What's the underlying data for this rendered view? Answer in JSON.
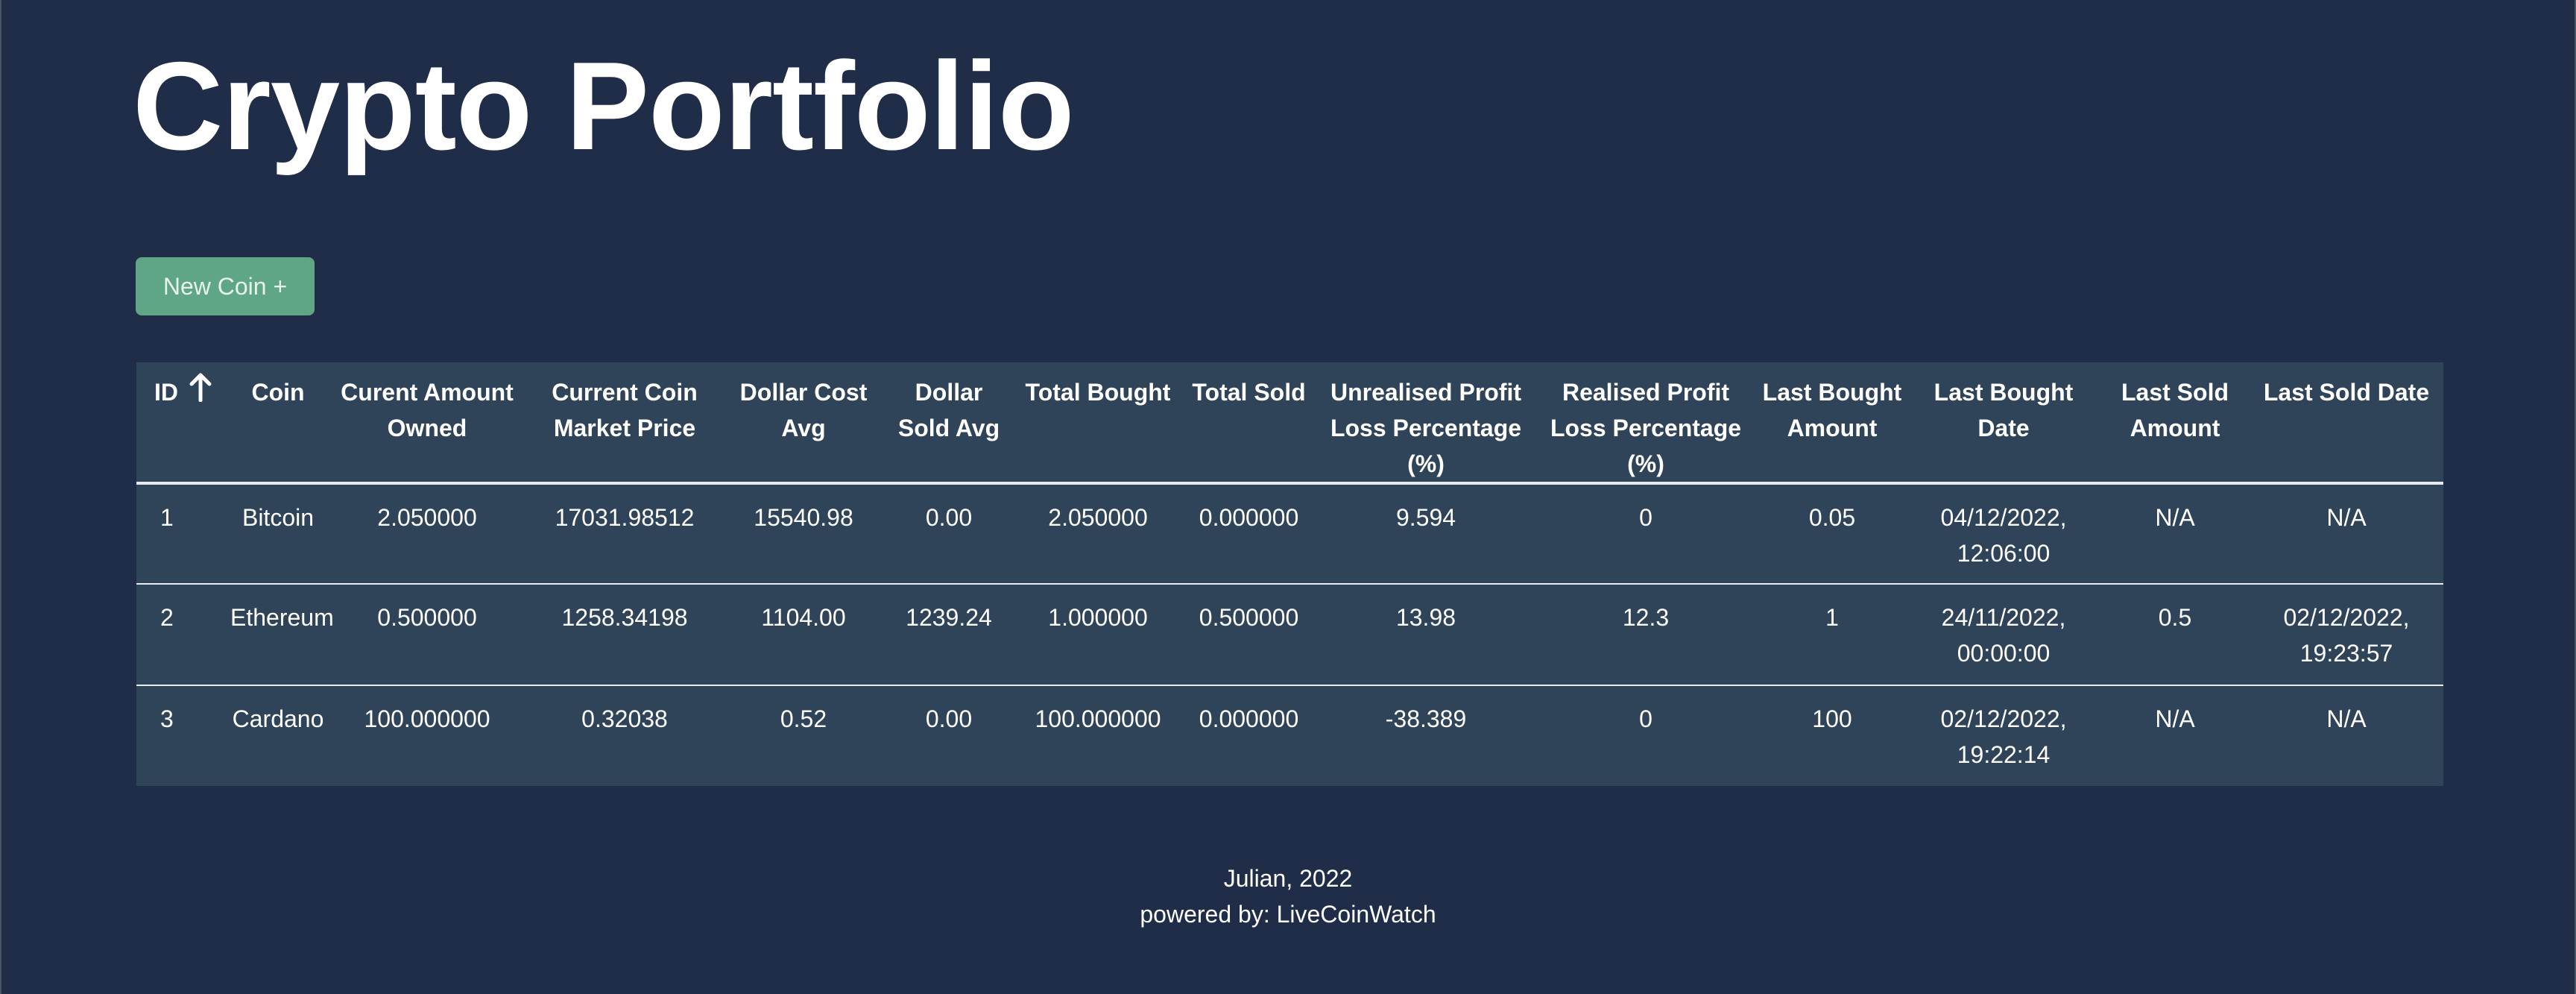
{
  "header": {
    "title": "Crypto Portfolio"
  },
  "toolbar": {
    "new_coin_label": "New Coin +"
  },
  "table": {
    "sort_icon": "arrow-up-icon",
    "columns": [
      "ID",
      "Coin",
      "Curent Amount Owned",
      "Current Coin Market Price",
      "Dollar Cost Avg",
      "Dollar Sold Avg",
      "Total Bought",
      "Total Sold",
      "Unrealised Profit Loss Percentage (%)",
      "Realised Profit Loss Percentage (%)",
      "Last Bought Amount",
      "Last Bought Date",
      "Last Sold Amount",
      "Last Sold Date"
    ],
    "rows": [
      [
        "1",
        "Bitcoin",
        "2.050000",
        "17031.98512",
        "15540.98",
        "0.00",
        "2.050000",
        "0.000000",
        "9.594",
        "0",
        "0.05",
        "04/12/2022, 12:06:00",
        "N/A",
        "N/A"
      ],
      [
        "2",
        "Ethereum",
        "0.500000",
        "1258.34198",
        "1104.00",
        "1239.24",
        "1.000000",
        "0.500000",
        "13.98",
        "12.3",
        "1",
        "24/11/2022, 00:00:00",
        "0.5",
        "02/12/2022, 19:23:57"
      ],
      [
        "3",
        "Cardano",
        "100.000000",
        "0.32038",
        "0.52",
        "0.00",
        "100.000000",
        "0.000000",
        "-38.389",
        "0",
        "100",
        "02/12/2022, 19:22:14",
        "N/A",
        "N/A"
      ]
    ]
  },
  "colors": {
    "background": "#1f2d48",
    "table_background": "#2f4359",
    "button": "#5ea686",
    "positive": "#5fe38a",
    "negative": "#ef4a4a"
  },
  "footer": {
    "line1": "Julian, 2022",
    "line2": "powered by: LiveCoinWatch"
  }
}
